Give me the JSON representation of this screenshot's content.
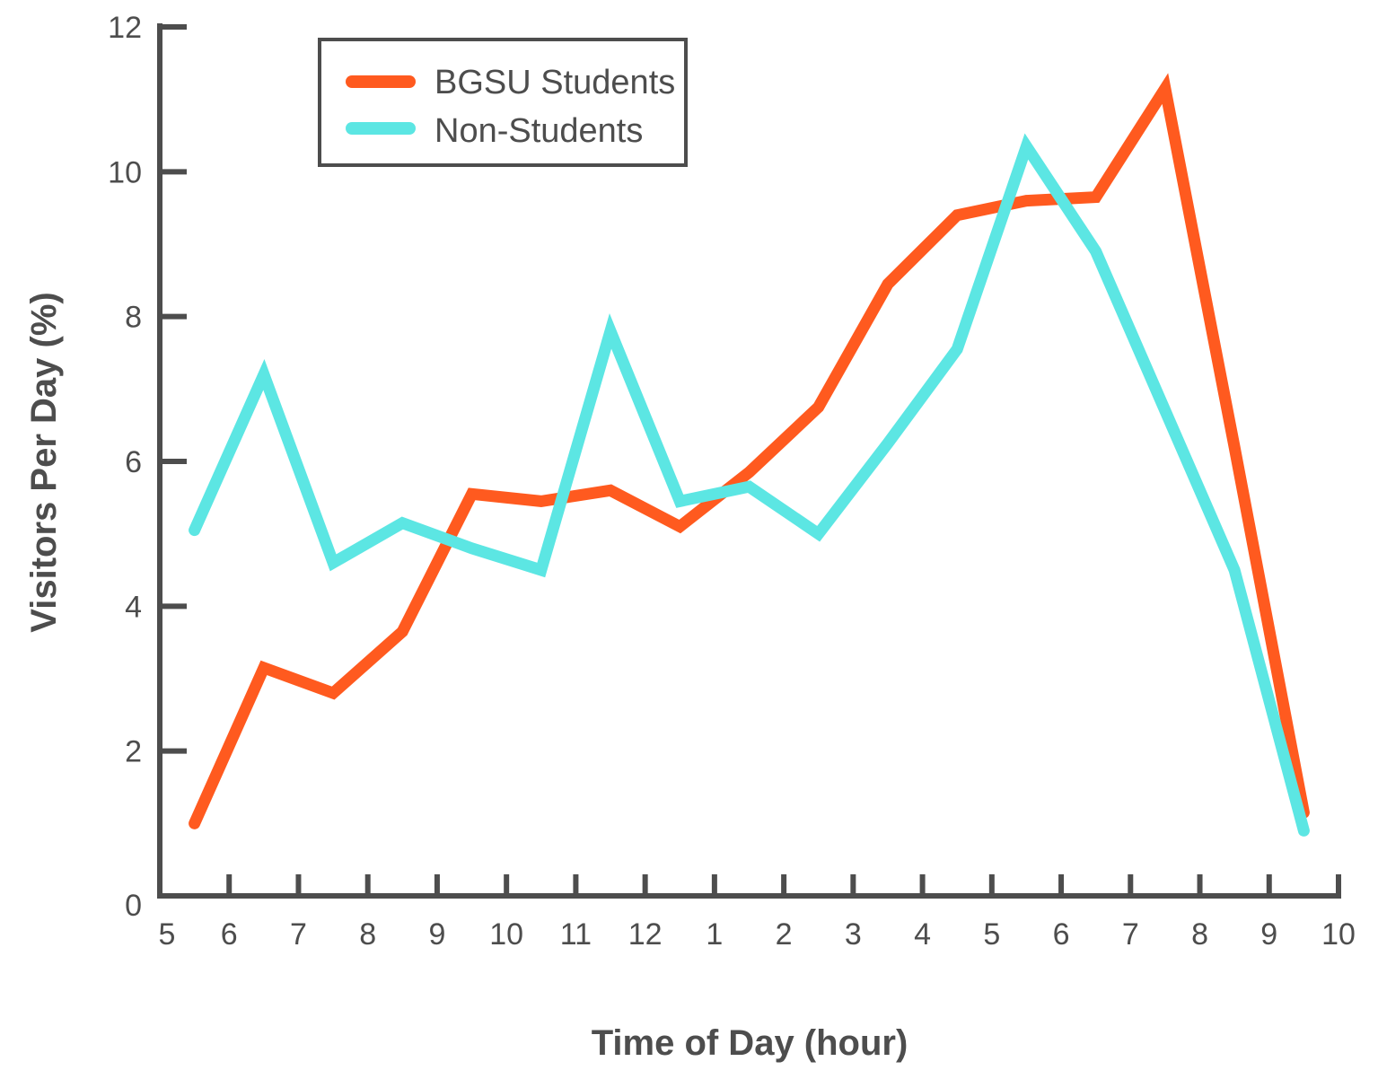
{
  "chart_data": {
    "type": "line",
    "title": "",
    "xlabel": "Time of Day (hour)",
    "ylabel": "Visitors Per Day (%)",
    "xlim": [
      5,
      22
    ],
    "ylim": [
      0,
      12
    ],
    "x_ticks": [
      5,
      6,
      7,
      8,
      9,
      10,
      11,
      12,
      13,
      14,
      15,
      16,
      17,
      18,
      19,
      20,
      21,
      22
    ],
    "x_tick_labels": [
      "5",
      "6",
      "7",
      "8",
      "9",
      "10",
      "11",
      "12",
      "1",
      "2",
      "3",
      "4",
      "5",
      "6",
      "7",
      "8",
      "9",
      "10"
    ],
    "y_ticks": [
      0,
      2,
      4,
      6,
      8,
      10,
      12
    ],
    "y_tick_labels": [
      "0",
      "2",
      "4",
      "6",
      "8",
      "10",
      "12"
    ],
    "grid": false,
    "legend_placement": "top-left",
    "x": [
      5.5,
      6.5,
      7.5,
      8.5,
      9.5,
      10.5,
      11.5,
      12.5,
      13.5,
      14.5,
      15.5,
      16.5,
      17.5,
      18.5,
      19.5,
      20.5,
      21.5
    ],
    "series": [
      {
        "name": "BGSU Students",
        "color": "#ff5a1f",
        "values": [
          1.0,
          3.15,
          2.8,
          3.65,
          5.55,
          5.45,
          5.6,
          5.1,
          5.85,
          6.75,
          8.45,
          9.4,
          9.6,
          9.65,
          11.15,
          6.2,
          1.15
        ]
      },
      {
        "name": "Non-Students",
        "color": "#5ce6e3",
        "values": [
          5.05,
          7.2,
          4.6,
          5.15,
          4.8,
          4.5,
          7.8,
          5.45,
          5.65,
          5.0,
          6.25,
          7.55,
          10.35,
          8.9,
          6.7,
          4.5,
          0.9
        ]
      }
    ],
    "axis_color": "#4d4d4d"
  }
}
